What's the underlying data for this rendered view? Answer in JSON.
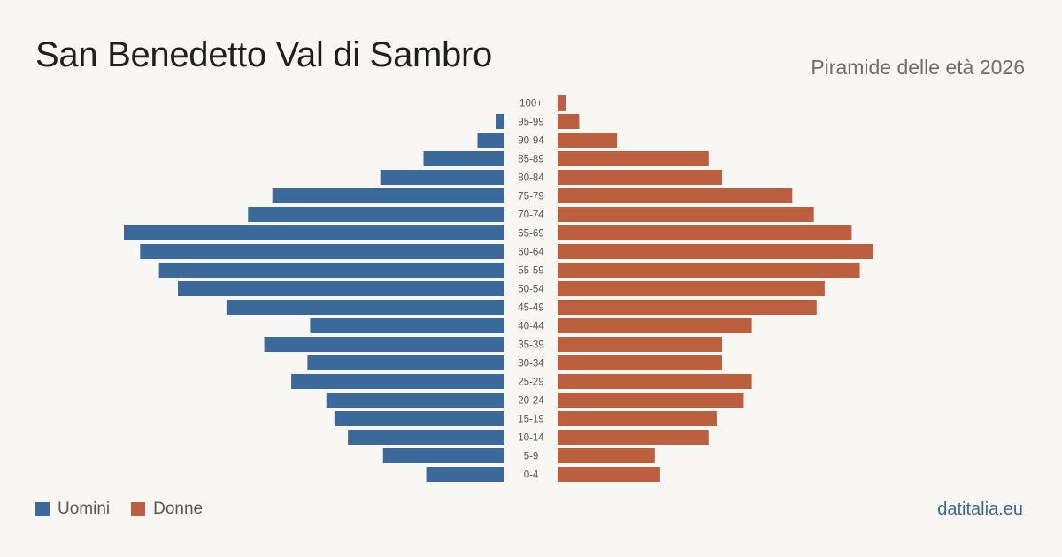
{
  "header": {
    "title": "San Benedetto Val di Sambro",
    "subtitle": "Piramide delle età 2026"
  },
  "legend": {
    "men_label": "Uomini",
    "women_label": "Donne"
  },
  "footer": {
    "brand": "datitalia.eu"
  },
  "colors": {
    "men": "#3b6a9a",
    "women": "#bb5f3e",
    "background": "#f9f7f3"
  },
  "chart_data": {
    "type": "bar",
    "orientation": "horizontal-pyramid",
    "categories": [
      "100+",
      "95-99",
      "90-94",
      "85-89",
      "80-84",
      "75-79",
      "70-74",
      "65-69",
      "60-64",
      "55-59",
      "50-54",
      "45-49",
      "40-44",
      "35-39",
      "30-34",
      "25-29",
      "20-24",
      "15-19",
      "10-14",
      "5-9",
      "0-4"
    ],
    "series": [
      {
        "name": "Uomini",
        "values": [
          0,
          3,
          10,
          30,
          46,
          86,
          95,
          141,
          135,
          128,
          121,
          103,
          72,
          89,
          73,
          79,
          66,
          63,
          58,
          45,
          29
        ]
      },
      {
        "name": "Donne",
        "values": [
          3,
          8,
          22,
          56,
          61,
          87,
          95,
          109,
          117,
          112,
          99,
          96,
          72,
          61,
          61,
          72,
          69,
          59,
          56,
          36,
          38
        ]
      }
    ]
  }
}
